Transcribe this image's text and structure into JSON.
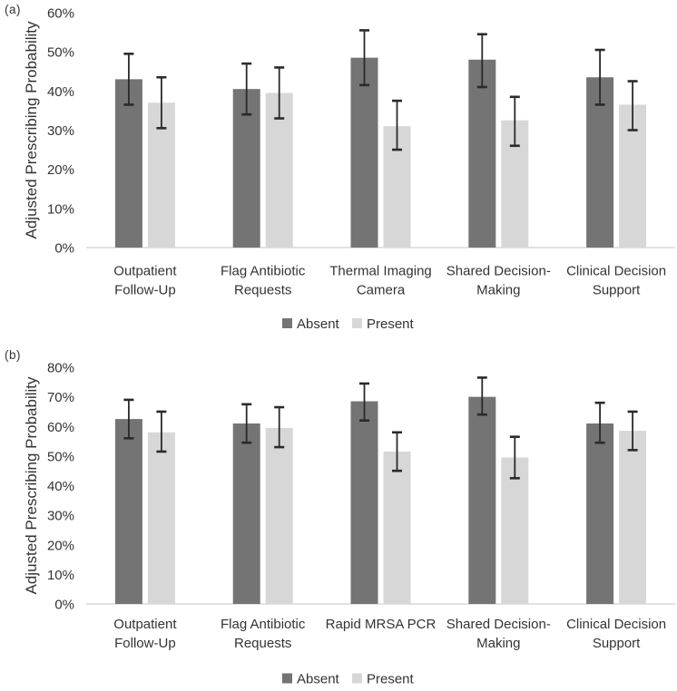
{
  "legend": {
    "absent": "Absent",
    "present": "Present"
  },
  "colors": {
    "absent_fill": "#747474",
    "present_fill": "#d7d7d7",
    "error_bar": "#2a2a2a",
    "axis_line": "#d9d9d9",
    "text": "#333333"
  },
  "chart_data": [
    {
      "type": "bar",
      "panel_label": "(a)",
      "title": "",
      "xlabel": "",
      "ylabel": "Adjusted Prescribing Probability",
      "ylim": [
        0,
        60
      ],
      "ytick_step": 10,
      "ytick_labels": [
        "0%",
        "10%",
        "20%",
        "30%",
        "40%",
        "50%",
        "60%"
      ],
      "grid": false,
      "legend_position": "bottom",
      "legend_entries": [
        "Absent",
        "Present"
      ],
      "categories": [
        "Outpatient Follow-Up",
        "Flag Antibiotic Requests",
        "Thermal Imaging Camera",
        "Shared Decision-Making",
        "Clinical Decision Support"
      ],
      "category_label_lines": [
        [
          "Outpatient",
          "Follow-Up"
        ],
        [
          "Flag Antibiotic",
          "Requests"
        ],
        [
          "Thermal Imaging",
          "Camera"
        ],
        [
          "Shared Decision-",
          "Making"
        ],
        [
          "Clinical Decision",
          "Support"
        ]
      ],
      "series": [
        {
          "name": "Absent",
          "values": [
            43.0,
            40.5,
            48.5,
            48.0,
            43.5
          ],
          "ci_low": [
            36.5,
            34.0,
            41.5,
            41.0,
            36.5
          ],
          "ci_high": [
            49.5,
            47.0,
            55.5,
            54.5,
            50.5
          ]
        },
        {
          "name": "Present",
          "values": [
            37.0,
            39.5,
            31.0,
            32.5,
            36.5
          ],
          "ci_low": [
            30.5,
            33.0,
            25.0,
            26.0,
            30.0
          ],
          "ci_high": [
            43.5,
            46.0,
            37.5,
            38.5,
            42.5
          ]
        }
      ]
    },
    {
      "type": "bar",
      "panel_label": "(b)",
      "title": "",
      "xlabel": "",
      "ylabel": "Adjusted Prescribing Probability",
      "ylim": [
        0,
        80
      ],
      "ytick_step": 10,
      "ytick_labels": [
        "0%",
        "10%",
        "20%",
        "30%",
        "40%",
        "50%",
        "60%",
        "70%",
        "80%"
      ],
      "grid": false,
      "legend_position": "bottom",
      "legend_entries": [
        "Absent",
        "Present"
      ],
      "categories": [
        "Outpatient Follow-Up",
        "Flag Antibiotic Requests",
        "Rapid MRSA PCR",
        "Shared Decision-Making",
        "Clinical Decision Support"
      ],
      "category_label_lines": [
        [
          "Outpatient",
          "Follow-Up"
        ],
        [
          "Flag Antibiotic",
          "Requests"
        ],
        [
          "Rapid MRSA PCR"
        ],
        [
          "Shared Decision-",
          "Making"
        ],
        [
          "Clinical Decision",
          "Support"
        ]
      ],
      "series": [
        {
          "name": "Absent",
          "values": [
            62.5,
            61.0,
            68.5,
            70.0,
            61.0
          ],
          "ci_low": [
            56.0,
            54.5,
            62.0,
            64.0,
            54.5
          ],
          "ci_high": [
            69.0,
            67.5,
            74.5,
            76.5,
            68.0
          ]
        },
        {
          "name": "Present",
          "values": [
            58.0,
            59.5,
            51.5,
            49.5,
            58.5
          ],
          "ci_low": [
            51.5,
            53.0,
            45.0,
            42.5,
            52.0
          ],
          "ci_high": [
            65.0,
            66.5,
            58.0,
            56.5,
            65.0
          ]
        }
      ]
    }
  ]
}
